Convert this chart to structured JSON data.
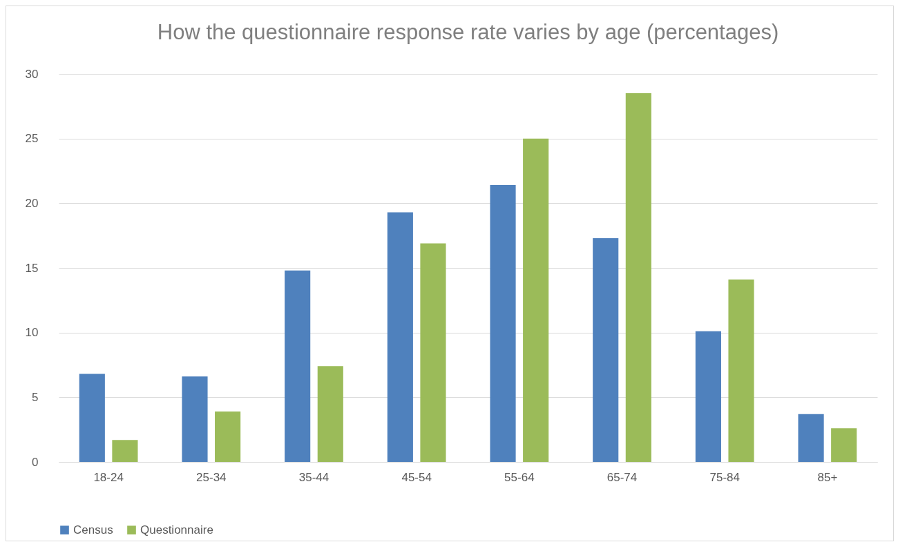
{
  "chart_data": {
    "type": "bar",
    "title": "How the questionnaire response rate varies by age (percentages)",
    "categories": [
      "18-24",
      "25-34",
      "35-44",
      "45-54",
      "55-64",
      "65-74",
      "75-84",
      "85+"
    ],
    "series": [
      {
        "name": "Census",
        "color": "#4f81bd",
        "values": [
          6.8,
          6.6,
          14.8,
          19.3,
          21.4,
          17.3,
          10.1,
          3.7
        ]
      },
      {
        "name": "Questionnaire",
        "color": "#9bbb59",
        "values": [
          1.7,
          3.9,
          7.4,
          16.9,
          25.0,
          28.5,
          14.1,
          2.6
        ]
      }
    ],
    "ylim": [
      0,
      30
    ],
    "yticks": [
      0,
      5,
      10,
      15,
      20,
      25,
      30
    ],
    "grid": "y",
    "legend": "bottom"
  }
}
